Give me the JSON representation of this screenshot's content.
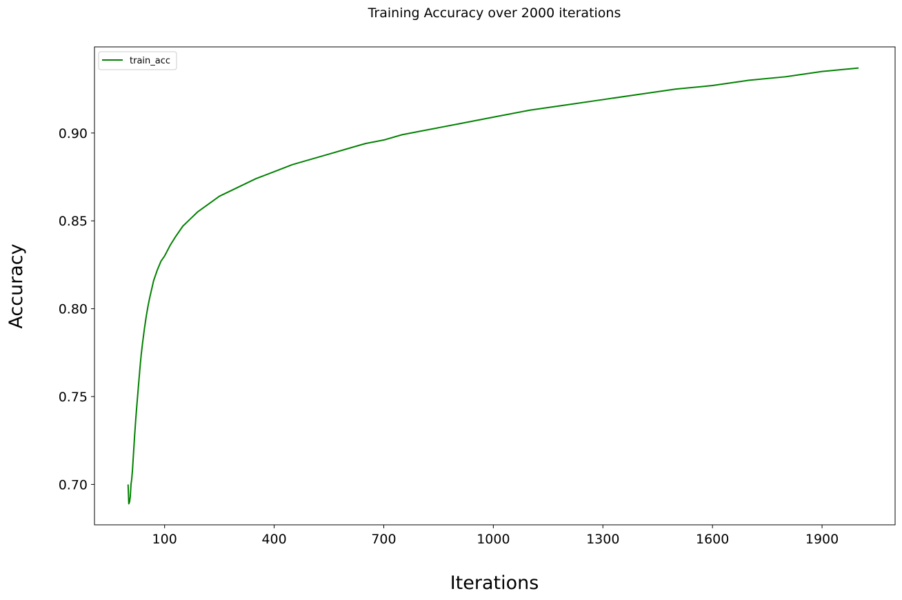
{
  "chart_data": {
    "type": "line",
    "title": "Training Accuracy over 2000 iterations",
    "xlabel": "Iterations",
    "ylabel": "Accuracy",
    "xlim": [
      -92,
      2100
    ],
    "ylim": [
      0.677,
      0.949
    ],
    "xticks": [
      100,
      400,
      700,
      1000,
      1300,
      1600,
      1900
    ],
    "xtick_labels": [
      "100",
      "400",
      "700",
      "1000",
      "1300",
      "1600",
      "1900"
    ],
    "yticks": [
      0.7,
      0.75,
      0.8,
      0.85,
      0.9
    ],
    "ytick_labels": [
      "0.70",
      "0.75",
      "0.80",
      "0.85",
      "0.90"
    ],
    "grid": false,
    "legend_position": "top-left",
    "series": [
      {
        "name": "train_acc",
        "color": "#008000",
        "x": [
          0,
          2,
          4,
          6,
          8,
          10,
          12,
          15,
          18,
          21,
          24,
          28,
          32,
          36,
          40,
          45,
          50,
          55,
          60,
          70,
          80,
          90,
          100,
          115,
          130,
          150,
          170,
          190,
          210,
          230,
          250,
          300,
          350,
          400,
          450,
          500,
          550,
          600,
          650,
          700,
          750,
          800,
          850,
          900,
          950,
          1000,
          1100,
          1200,
          1300,
          1400,
          1500,
          1600,
          1700,
          1800,
          1900,
          2000
        ],
        "y": [
          0.7,
          0.689,
          0.69,
          0.693,
          0.7,
          0.703,
          0.708,
          0.718,
          0.728,
          0.737,
          0.745,
          0.755,
          0.765,
          0.774,
          0.781,
          0.789,
          0.796,
          0.802,
          0.807,
          0.816,
          0.822,
          0.827,
          0.83,
          0.836,
          0.841,
          0.847,
          0.851,
          0.855,
          0.858,
          0.861,
          0.864,
          0.869,
          0.874,
          0.878,
          0.882,
          0.885,
          0.888,
          0.891,
          0.894,
          0.896,
          0.899,
          0.901,
          0.903,
          0.905,
          0.907,
          0.909,
          0.913,
          0.916,
          0.919,
          0.922,
          0.925,
          0.927,
          0.93,
          0.932,
          0.935,
          0.937
        ]
      }
    ]
  }
}
